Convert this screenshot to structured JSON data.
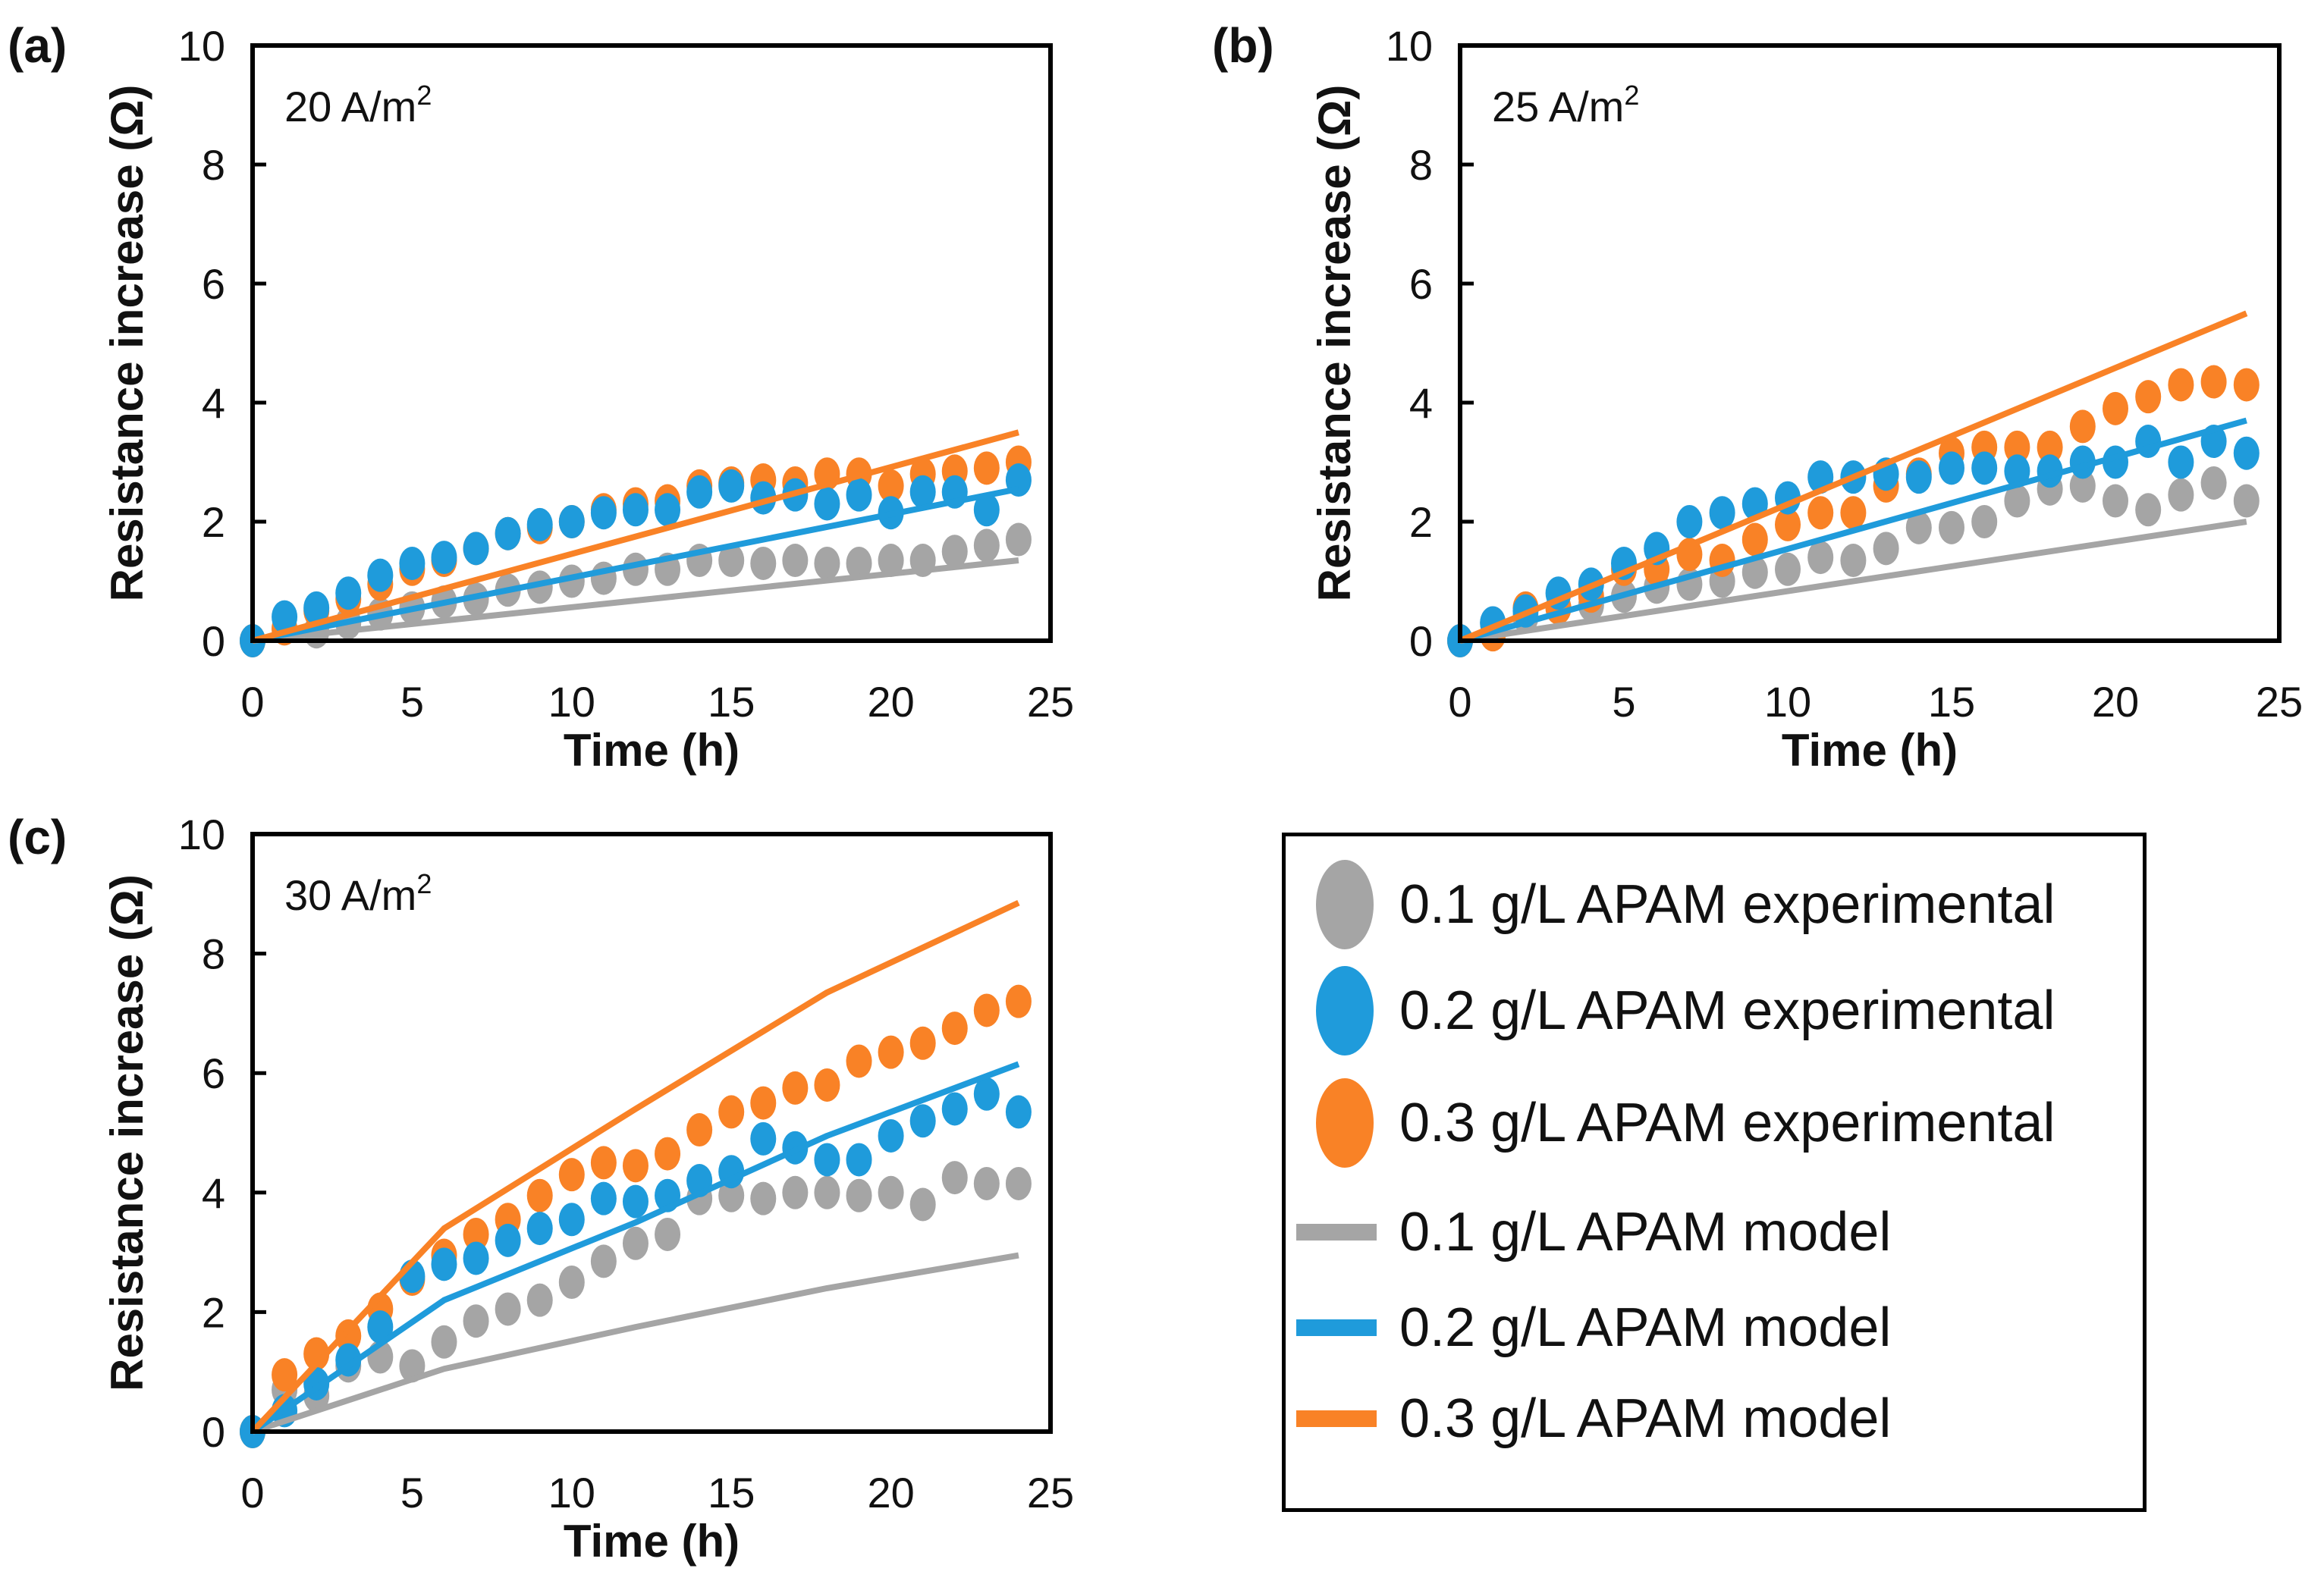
{
  "figure": {
    "legend": {
      "entries": [
        {
          "label": "0.1 g/L APAM experimental",
          "type": "marker",
          "color": "#A5A5A5"
        },
        {
          "label": "0.2 g/L APAM experimental",
          "type": "marker",
          "color": "#1F9BDB"
        },
        {
          "label": "0.3 g/L APAM experimental",
          "type": "marker",
          "color": "#F98226"
        },
        {
          "label": "0.1 g/L APAM model",
          "type": "line",
          "color": "#A5A5A5"
        },
        {
          "label": "0.2 g/L APAM model",
          "type": "line",
          "color": "#1F9BDB"
        },
        {
          "label": "0.3 g/L APAM model",
          "type": "line",
          "color": "#F98226"
        }
      ]
    }
  },
  "chart_data": [
    {
      "panel": "(a)",
      "type": "scatter",
      "annotation": "20 A/m",
      "annotation_sup": "2",
      "xlabel": "Time (h)",
      "ylabel": "Resistance increase (Ω)",
      "xlim": [
        0,
        25
      ],
      "ylim": [
        0,
        10
      ],
      "xticks": [
        0,
        5,
        10,
        15,
        20,
        25
      ],
      "yticks": [
        0,
        2,
        4,
        6,
        8,
        10
      ],
      "grid": false,
      "x": [
        0,
        1,
        2,
        3,
        4,
        5,
        6,
        7,
        8,
        9,
        10,
        11,
        12,
        13,
        14,
        15,
        16,
        17,
        18,
        19,
        20,
        21,
        22,
        23,
        24
      ],
      "series": [
        {
          "name": "0.1 g/L APAM experimental",
          "kind": "scatter",
          "color": "#A5A5A5",
          "values": [
            0,
            0.2,
            0.15,
            0.3,
            0.45,
            0.55,
            0.65,
            0.7,
            0.85,
            0.9,
            1.0,
            1.05,
            1.2,
            1.2,
            1.35,
            1.35,
            1.3,
            1.35,
            1.3,
            1.3,
            1.35,
            1.35,
            1.5,
            1.6,
            1.7
          ]
        },
        {
          "name": "0.3 g/L APAM experimental",
          "kind": "scatter",
          "color": "#F98226",
          "values": [
            0,
            0.2,
            0.5,
            0.7,
            0.95,
            1.2,
            1.35,
            1.55,
            1.8,
            1.9,
            2.0,
            2.2,
            2.3,
            2.35,
            2.6,
            2.65,
            2.7,
            2.65,
            2.8,
            2.8,
            2.6,
            2.8,
            2.85,
            2.9,
            3.0
          ]
        },
        {
          "name": "0.2 g/L APAM experimental",
          "kind": "scatter",
          "color": "#1F9BDB",
          "values": [
            0,
            0.4,
            0.55,
            0.8,
            1.1,
            1.3,
            1.4,
            1.55,
            1.8,
            1.95,
            2.0,
            2.15,
            2.2,
            2.2,
            2.5,
            2.6,
            2.4,
            2.45,
            2.3,
            2.45,
            2.15,
            2.5,
            2.5,
            2.2,
            2.7
          ]
        },
        {
          "name": "0.1 g/L APAM model",
          "kind": "line",
          "color": "#A5A5A5",
          "points": [
            [
              0,
              0
            ],
            [
              24,
              1.35
            ]
          ]
        },
        {
          "name": "0.2 g/L APAM model",
          "kind": "line",
          "color": "#1F9BDB",
          "points": [
            [
              0,
              0
            ],
            [
              24,
              2.55
            ]
          ]
        },
        {
          "name": "0.3 g/L APAM model",
          "kind": "line",
          "color": "#F98226",
          "points": [
            [
              0,
              0
            ],
            [
              24,
              3.5
            ]
          ]
        }
      ]
    },
    {
      "panel": "(b)",
      "type": "scatter",
      "annotation": "25 A/m",
      "annotation_sup": "2",
      "xlabel": "Time (h)",
      "ylabel": "Resistance increase (Ω)",
      "xlim": [
        0,
        25
      ],
      "ylim": [
        0,
        10
      ],
      "xticks": [
        0,
        5,
        10,
        15,
        20,
        25
      ],
      "yticks": [
        0,
        2,
        4,
        6,
        8,
        10
      ],
      "grid": false,
      "x": [
        0,
        1,
        2,
        3,
        4,
        5,
        6,
        7,
        8,
        9,
        10,
        11,
        12,
        13,
        14,
        15,
        16,
        17,
        18,
        19,
        20,
        21,
        22,
        23,
        24
      ],
      "series": [
        {
          "name": "0.1 g/L APAM experimental",
          "kind": "scatter",
          "color": "#A5A5A5",
          "values": [
            0,
            0.3,
            0.4,
            0.55,
            0.6,
            0.75,
            0.9,
            0.95,
            1.0,
            1.15,
            1.2,
            1.4,
            1.35,
            1.55,
            1.9,
            1.9,
            2.0,
            2.35,
            2.55,
            2.6,
            2.35,
            2.2,
            2.45,
            2.65,
            2.35
          ]
        },
        {
          "name": "0.3 g/L APAM experimental",
          "kind": "scatter",
          "color": "#F98226",
          "values": [
            0,
            0.1,
            0.55,
            0.55,
            0.75,
            1.2,
            1.2,
            1.45,
            1.35,
            1.7,
            1.95,
            2.15,
            2.15,
            2.6,
            2.8,
            3.15,
            3.25,
            3.25,
            3.25,
            3.6,
            3.9,
            4.1,
            4.3,
            4.35,
            4.3
          ]
        },
        {
          "name": "0.2 g/L APAM experimental",
          "kind": "scatter",
          "color": "#1F9BDB",
          "values": [
            0,
            0.3,
            0.5,
            0.8,
            0.95,
            1.3,
            1.55,
            2.0,
            2.15,
            2.3,
            2.4,
            2.75,
            2.75,
            2.8,
            2.75,
            2.9,
            2.9,
            2.85,
            2.85,
            3.0,
            3.0,
            3.35,
            3.0,
            3.35,
            3.15
          ]
        },
        {
          "name": "0.1 g/L APAM model",
          "kind": "line",
          "color": "#A5A5A5",
          "points": [
            [
              0,
              0
            ],
            [
              24,
              2.0
            ]
          ]
        },
        {
          "name": "0.2 g/L APAM model",
          "kind": "line",
          "color": "#1F9BDB",
          "points": [
            [
              0,
              0
            ],
            [
              24,
              3.7
            ]
          ]
        },
        {
          "name": "0.3 g/L APAM model",
          "kind": "line",
          "color": "#F98226",
          "points": [
            [
              0,
              0
            ],
            [
              24,
              5.5
            ]
          ]
        }
      ]
    },
    {
      "panel": "(c)",
      "type": "scatter",
      "annotation": "30 A/m",
      "annotation_sup": "2",
      "xlabel": "Time (h)",
      "ylabel": "Resistance increase (Ω)",
      "xlim": [
        0,
        25
      ],
      "ylim": [
        0,
        10
      ],
      "xticks": [
        0,
        5,
        10,
        15,
        20,
        25
      ],
      "yticks": [
        0,
        2,
        4,
        6,
        8,
        10
      ],
      "grid": false,
      "x": [
        0,
        1,
        2,
        3,
        4,
        5,
        6,
        7,
        8,
        9,
        10,
        11,
        12,
        13,
        14,
        15,
        16,
        17,
        18,
        19,
        20,
        21,
        22,
        23,
        24
      ],
      "series": [
        {
          "name": "0.1 g/L APAM experimental",
          "kind": "scatter",
          "color": "#A5A5A5",
          "values": [
            0,
            0.7,
            0.6,
            1.1,
            1.25,
            1.1,
            1.5,
            1.85,
            2.05,
            2.2,
            2.5,
            2.85,
            3.15,
            3.3,
            3.9,
            3.95,
            3.9,
            4.0,
            4.0,
            3.95,
            4.0,
            3.8,
            4.25,
            4.15,
            4.15
          ]
        },
        {
          "name": "0.3 g/L APAM experimental",
          "kind": "scatter",
          "color": "#F98226",
          "values": [
            0,
            0.95,
            1.3,
            1.6,
            2.05,
            2.55,
            2.95,
            3.3,
            3.55,
            3.95,
            4.3,
            4.5,
            4.45,
            4.65,
            5.05,
            5.35,
            5.5,
            5.75,
            5.8,
            6.2,
            6.35,
            6.5,
            6.75,
            7.05,
            7.2
          ]
        },
        {
          "name": "0.2 g/L APAM experimental",
          "kind": "scatter",
          "color": "#1F9BDB",
          "values": [
            0,
            0.35,
            0.8,
            1.2,
            1.75,
            2.6,
            2.8,
            2.9,
            3.2,
            3.4,
            3.55,
            3.9,
            3.85,
            3.95,
            4.2,
            4.35,
            4.9,
            4.75,
            4.55,
            4.55,
            4.95,
            5.2,
            5.4,
            5.65,
            5.35
          ]
        },
        {
          "name": "0.1 g/L APAM model",
          "kind": "line",
          "color": "#A5A5A5",
          "points": [
            [
              0,
              0
            ],
            [
              6,
              1.05
            ],
            [
              12,
              1.75
            ],
            [
              18,
              2.4
            ],
            [
              24,
              2.95
            ]
          ]
        },
        {
          "name": "0.2 g/L APAM model",
          "kind": "line",
          "color": "#1F9BDB",
          "points": [
            [
              0,
              0
            ],
            [
              6,
              2.2
            ],
            [
              12,
              3.5
            ],
            [
              18,
              4.95
            ],
            [
              24,
              6.15
            ]
          ]
        },
        {
          "name": "0.3 g/L APAM model",
          "kind": "line",
          "color": "#F98226",
          "points": [
            [
              0,
              0
            ],
            [
              6,
              3.4
            ],
            [
              12,
              5.4
            ],
            [
              18,
              7.35
            ],
            [
              24,
              8.85
            ]
          ]
        }
      ]
    }
  ]
}
